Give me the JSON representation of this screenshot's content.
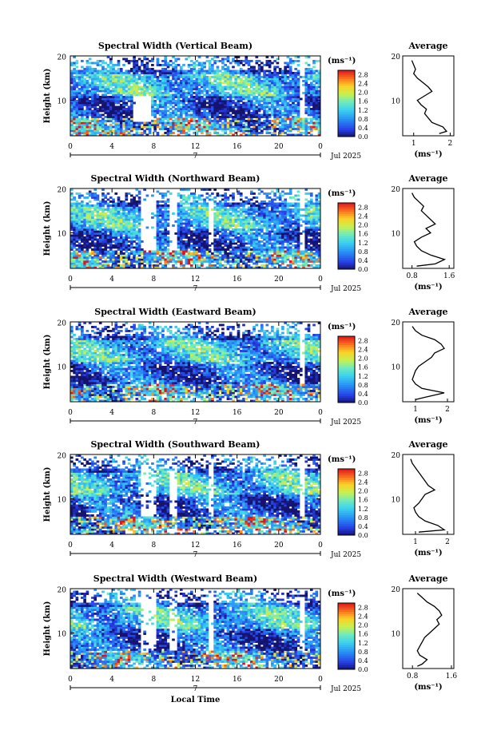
{
  "colorbar": {
    "unit": "(ms⁻¹)",
    "ticks": [
      "2.8",
      "2.4",
      "2.0",
      "1.6",
      "1.2",
      "0.8",
      "0.4",
      "0.0"
    ]
  },
  "shared": {
    "ylabel": "Height (km)",
    "y_ticks": [
      "20",
      "10"
    ],
    "x_ticks": [
      "0",
      "4",
      "8",
      "12",
      "16",
      "20",
      "0"
    ],
    "date_marker": "7",
    "date_label": "Jul 2025",
    "avg_title": "Average",
    "avg_xlabel": "(ms⁻¹)",
    "bottom_xlabel": "Local Time"
  },
  "chart_data": [
    {
      "type": "heatmap",
      "title": "Spectral Width (Vertical Beam)",
      "x_range_hours": [
        0,
        24
      ],
      "y_range_km": [
        2,
        20
      ],
      "color_range": [
        0.0,
        3.0
      ],
      "average_profile": {
        "x_ticks": [
          "1",
          "2"
        ],
        "xlim": [
          0.7,
          2.1
        ],
        "height_km": [
          2.5,
          3,
          4,
          5,
          6,
          7,
          8,
          9,
          10,
          11,
          12,
          13,
          14,
          15,
          16,
          17,
          18,
          19
        ],
        "width": [
          1.7,
          1.9,
          1.8,
          1.5,
          1.4,
          1.3,
          1.35,
          1.2,
          1.1,
          1.3,
          1.5,
          1.4,
          1.25,
          1.1,
          1.0,
          1.05,
          1.0,
          0.95
        ]
      }
    },
    {
      "type": "heatmap",
      "title": "Spectral Width (Northward Beam)",
      "x_range_hours": [
        0,
        24
      ],
      "y_range_km": [
        2,
        20
      ],
      "color_range": [
        0.0,
        3.0
      ],
      "average_profile": {
        "x_ticks": [
          "0.8",
          "1.6"
        ],
        "xlim": [
          0.6,
          1.7
        ],
        "height_km": [
          2.5,
          3,
          4,
          5,
          6,
          7,
          8,
          9,
          10,
          11,
          12,
          13,
          14,
          15,
          16,
          17,
          18,
          19
        ],
        "width": [
          0.9,
          1.3,
          1.5,
          1.2,
          1.0,
          0.9,
          0.85,
          1.0,
          1.2,
          1.1,
          1.3,
          1.2,
          1.1,
          1.0,
          1.05,
          0.95,
          0.85,
          0.8
        ]
      }
    },
    {
      "type": "heatmap",
      "title": "Spectral Width (Eastward Beam)",
      "x_range_hours": [
        0,
        24
      ],
      "y_range_km": [
        2,
        20
      ],
      "color_range": [
        0.0,
        3.0
      ],
      "average_profile": {
        "x_ticks": [
          "1",
          "2"
        ],
        "xlim": [
          0.6,
          2.2
        ],
        "height_km": [
          2.5,
          3,
          4,
          5,
          6,
          7,
          8,
          9,
          10,
          11,
          12,
          13,
          14,
          15,
          16,
          17,
          18,
          19
        ],
        "width": [
          1.0,
          1.3,
          1.9,
          1.2,
          1.0,
          0.9,
          0.95,
          1.0,
          1.1,
          1.3,
          1.5,
          1.6,
          1.9,
          1.8,
          1.6,
          1.2,
          1.0,
          0.9
        ]
      }
    },
    {
      "type": "heatmap",
      "title": "Spectral Width (Southward Beam)",
      "x_range_hours": [
        0,
        24
      ],
      "y_range_km": [
        2,
        20
      ],
      "color_range": [
        0.0,
        3.0
      ],
      "average_profile": {
        "x_ticks": [
          "1",
          "2"
        ],
        "xlim": [
          0.6,
          2.2
        ],
        "height_km": [
          2.5,
          3,
          4,
          5,
          6,
          7,
          8,
          9,
          10,
          11,
          12,
          13,
          14,
          15,
          16,
          17,
          18,
          19
        ],
        "width": [
          1.1,
          1.9,
          1.7,
          1.3,
          1.1,
          1.0,
          0.95,
          1.1,
          1.2,
          1.3,
          1.6,
          1.4,
          1.3,
          1.2,
          1.1,
          1.0,
          0.9,
          0.85
        ]
      }
    },
    {
      "type": "heatmap",
      "title": "Spectral Width (Westward Beam)",
      "x_range_hours": [
        0,
        24
      ],
      "y_range_km": [
        2,
        20
      ],
      "color_range": [
        0.0,
        3.0
      ],
      "average_profile": {
        "x_ticks": [
          "0.8",
          "1.6"
        ],
        "xlim": [
          0.6,
          1.65
        ],
        "height_km": [
          2.5,
          3,
          4,
          5,
          6,
          7,
          8,
          9,
          10,
          11,
          12,
          13,
          14,
          15,
          16,
          17,
          18,
          19
        ],
        "width": [
          0.9,
          1.0,
          1.1,
          0.95,
          0.9,
          0.95,
          1.0,
          1.05,
          1.15,
          1.25,
          1.35,
          1.3,
          1.4,
          1.35,
          1.25,
          1.1,
          1.0,
          0.9
        ]
      }
    }
  ]
}
